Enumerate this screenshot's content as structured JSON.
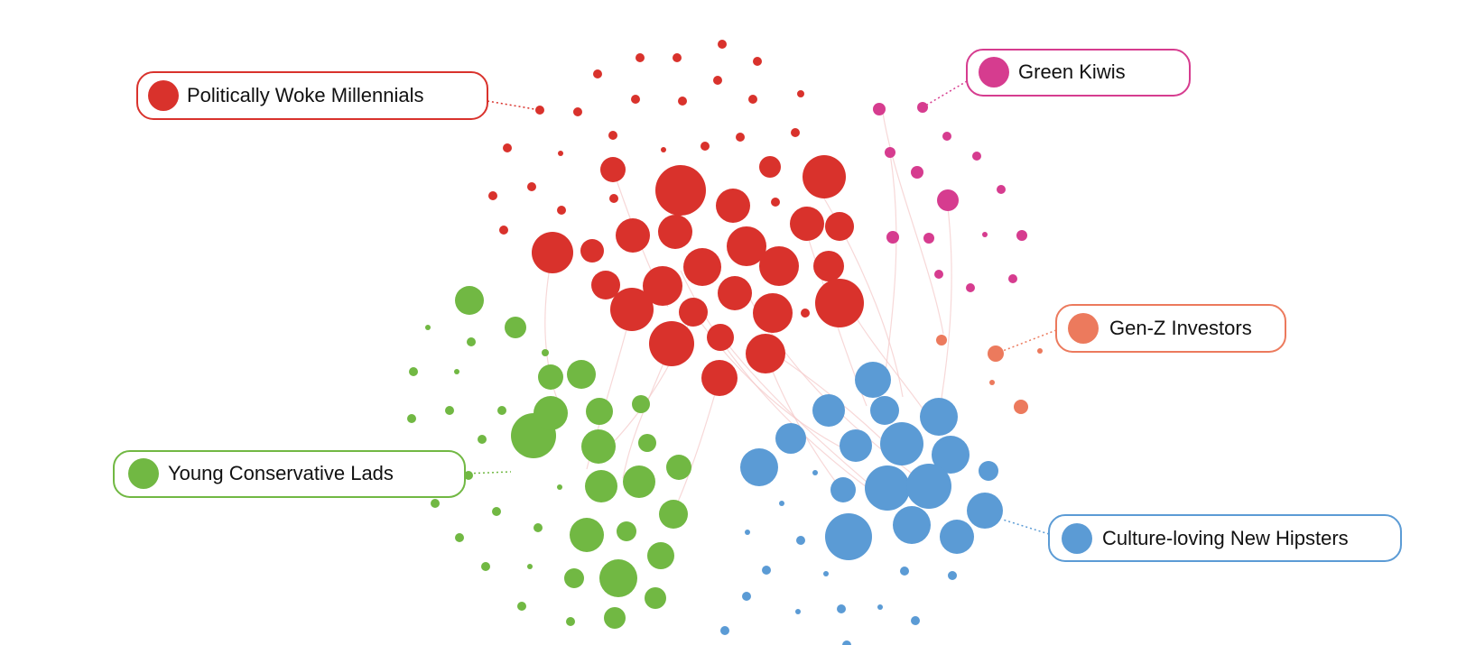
{
  "clusters": [
    {
      "id": "woke",
      "label": "Politically Woke Millennials",
      "color": "#d9322c"
    },
    {
      "id": "kiwis",
      "label": "Green Kiwis",
      "color": "#d63c8f"
    },
    {
      "id": "genz",
      "label": "Gen-Z Investors",
      "color": "#ec7a5d"
    },
    {
      "id": "lads",
      "label": "Young Conservative Lads",
      "color": "#71b843"
    },
    {
      "id": "hipster",
      "label": "Culture-loving New Hipsters",
      "color": "#5b9bd5"
    }
  ]
}
